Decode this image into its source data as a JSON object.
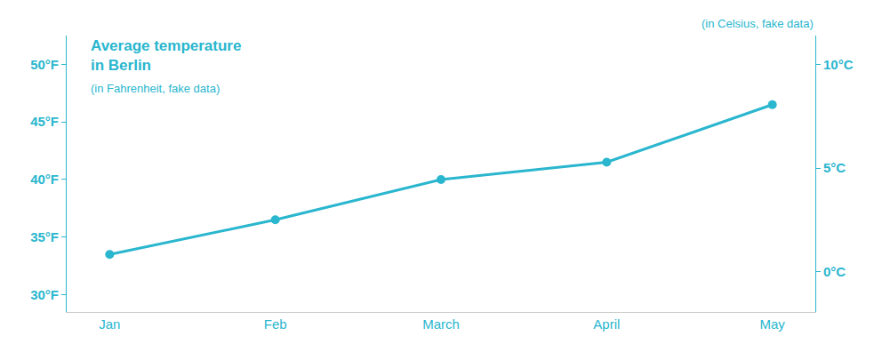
{
  "chart_data": {
    "type": "line",
    "title": "Average temperature\nin Berlin",
    "subtitle": "(in Fahrenheit, fake data)",
    "annotations": [
      "(in Celsius, fake data)"
    ],
    "categories": [
      "Jan",
      "Feb",
      "March",
      "April",
      "May"
    ],
    "values": [
      33.5,
      36.5,
      40.0,
      41.5,
      46.5
    ],
    "color": "#29B6CE",
    "marker": "circle",
    "line_style": "solid",
    "ylim": [
      28.5,
      52.5
    ],
    "yticks": [
      {
        "value": 30,
        "label": "30°F"
      },
      {
        "value": 35,
        "label": "35°F"
      },
      {
        "value": 40,
        "label": "40°F"
      },
      {
        "value": 45,
        "label": "45°F"
      },
      {
        "value": 50,
        "label": "50°F"
      }
    ],
    "y2lim": [
      -1.9444444444444444,
      11.38888888888889
    ],
    "y2ticks": [
      {
        "value": 0,
        "label": "0°C"
      },
      {
        "value": 5,
        "label": "5°C"
      },
      {
        "value": 10,
        "label": "10°C"
      }
    ],
    "grid": false
  }
}
